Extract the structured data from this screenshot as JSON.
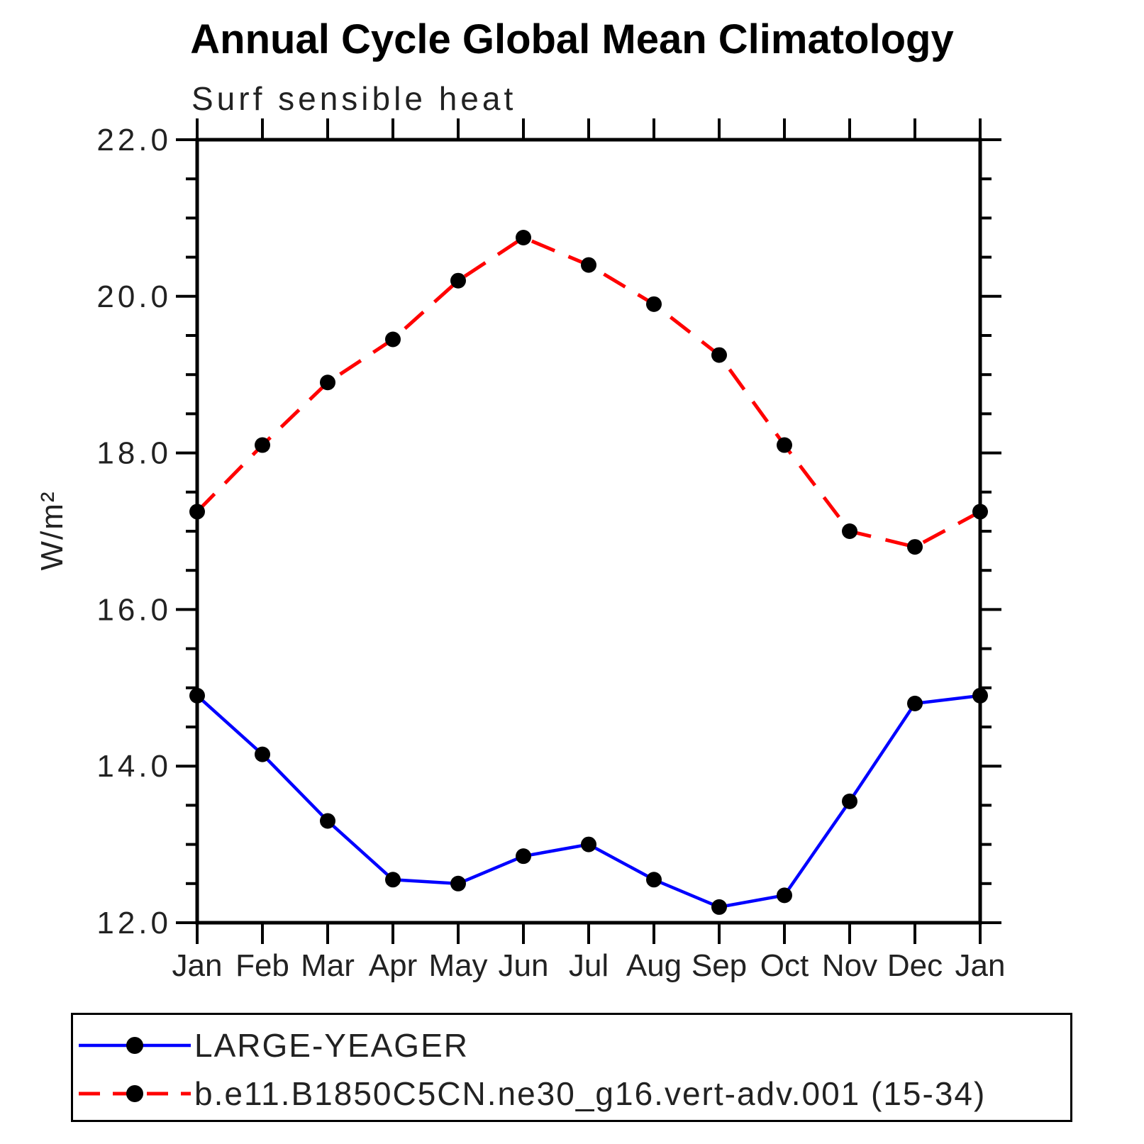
{
  "chart_data": {
    "type": "line",
    "title": "Annual Cycle Global Mean Climatology",
    "subtitle": "Surf sensible heat",
    "ylabel": "W/m²",
    "xlabel": "",
    "categories": [
      "Jan",
      "Feb",
      "Mar",
      "Apr",
      "May",
      "Jun",
      "Jul",
      "Aug",
      "Sep",
      "Oct",
      "Nov",
      "Dec",
      "Jan"
    ],
    "ylim": [
      12.0,
      22.0
    ],
    "ytick_major": 2.0,
    "ytick_minor": 0.5,
    "ytick_labels": [
      "12.0",
      "14.0",
      "16.0",
      "18.0",
      "20.0",
      "22.0"
    ],
    "grid": false,
    "legend_position": "bottom-left",
    "axis_color": "#000000",
    "series": [
      {
        "id": "large-yeager",
        "name": "LARGE-YEAGER",
        "color": "#0000ff",
        "line_style": "solid",
        "marker": "filled-circle",
        "marker_color": "#000000",
        "values": [
          14.9,
          14.15,
          13.3,
          12.55,
          12.5,
          12.85,
          13.0,
          12.55,
          12.2,
          12.35,
          13.55,
          14.8,
          14.9
        ]
      },
      {
        "id": "b-e11-b1850c5cn-model",
        "name": "b.e11.B1850C5CN.ne30_g16.vert-adv.001 (15-34)",
        "color": "#ff0000",
        "line_style": "dashed",
        "marker": "filled-circle",
        "marker_color": "#000000",
        "values": [
          17.25,
          18.1,
          18.9,
          19.45,
          20.2,
          20.75,
          20.4,
          19.9,
          19.25,
          18.1,
          17.0,
          16.8,
          17.25
        ]
      }
    ]
  }
}
